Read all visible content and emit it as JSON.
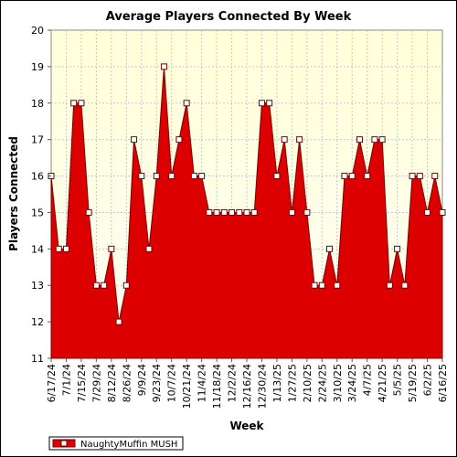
{
  "chart_data": {
    "type": "area",
    "title": "Average Players Connected By Week",
    "xlabel": "Week",
    "ylabel": "Players Connected",
    "ylim": [
      11,
      20
    ],
    "yticks": [
      11,
      12,
      13,
      14,
      15,
      16,
      17,
      18,
      19,
      20
    ],
    "grid": true,
    "legend_position": "bottom-left",
    "colors": {
      "fill": "#dd0000",
      "line": "#770000",
      "marker_fill": "#ffffff",
      "plot_bg_top": "#ffffd8",
      "plot_bg_bottom": "#fefef4"
    },
    "x_tick_labels": [
      "6/17/24",
      "7/1/24",
      "7/15/24",
      "7/29/24",
      "8/12/24",
      "8/26/24",
      "9/9/24",
      "9/23/24",
      "10/7/24",
      "10/21/24",
      "11/4/24",
      "11/18/24",
      "12/2/24",
      "12/16/24",
      "12/30/24",
      "1/13/25",
      "1/27/25",
      "2/10/25",
      "2/24/25",
      "3/10/25",
      "3/24/25",
      "4/7/25",
      "4/21/25",
      "5/5/25",
      "5/19/25",
      "6/2/25",
      "6/16/25"
    ],
    "series": [
      {
        "name": "NaughtyMuffin MUSH",
        "x": [
          "6/17/24",
          "6/24/24",
          "7/1/24",
          "7/8/24",
          "7/15/24",
          "7/22/24",
          "7/29/24",
          "8/5/24",
          "8/12/24",
          "8/19/24",
          "8/26/24",
          "9/2/24",
          "9/9/24",
          "9/16/24",
          "9/23/24",
          "9/30/24",
          "10/7/24",
          "10/14/24",
          "10/21/24",
          "10/28/24",
          "11/4/24",
          "11/11/24",
          "11/18/24",
          "11/25/24",
          "12/2/24",
          "12/9/24",
          "12/16/24",
          "12/23/24",
          "12/30/24",
          "1/6/25",
          "1/13/25",
          "1/20/25",
          "1/27/25",
          "2/3/25",
          "2/10/25",
          "2/17/25",
          "2/24/25",
          "3/3/25",
          "3/10/25",
          "3/17/25",
          "3/24/25",
          "3/31/25",
          "4/7/25",
          "4/14/25",
          "4/21/25",
          "4/28/25",
          "5/5/25",
          "5/12/25",
          "5/19/25",
          "5/26/25",
          "6/2/25",
          "6/9/25",
          "6/16/25"
        ],
        "values": [
          16,
          14,
          14,
          18,
          18,
          15,
          13,
          13,
          14,
          12,
          13,
          17,
          16,
          14,
          16,
          19,
          16,
          17,
          18,
          16,
          16,
          15,
          15,
          15,
          15,
          15,
          15,
          15,
          18,
          18,
          16,
          17,
          15,
          17,
          15,
          13,
          13,
          14,
          13,
          16,
          16,
          17,
          16,
          17,
          17,
          13,
          14,
          13,
          16,
          16,
          15,
          16,
          15
        ]
      }
    ]
  }
}
